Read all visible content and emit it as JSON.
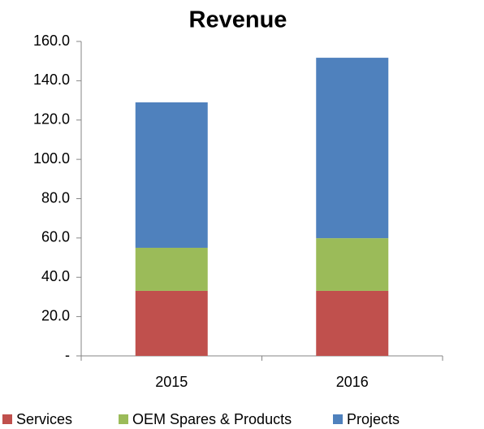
{
  "chart_data": {
    "type": "stacked_bar",
    "title": "Revenue",
    "categories": [
      "2015",
      "2016"
    ],
    "series": [
      {
        "name": "Services",
        "color": "#c0504d",
        "values": [
          33.1,
          33.1
        ]
      },
      {
        "name": "OEM Spares & Products",
        "color": "#9bbb59",
        "values": [
          21.9,
          26.8
        ]
      },
      {
        "name": "Projects",
        "color": "#4f81bd",
        "values": [
          74,
          91.8
        ]
      }
    ],
    "ylim": [
      0,
      160
    ],
    "yticks": [
      {
        "value": 0,
        "label": "-"
      },
      {
        "value": 20,
        "label": "20.0"
      },
      {
        "value": 40,
        "label": "40.0"
      },
      {
        "value": 60,
        "label": "60.0"
      },
      {
        "value": 80,
        "label": "80.0"
      },
      {
        "value": 100,
        "label": "100.0"
      },
      {
        "value": 120,
        "label": "120.0"
      },
      {
        "value": 140,
        "label": "140.0"
      },
      {
        "value": 160,
        "label": "160.0"
      }
    ],
    "grid": false,
    "legend": "bottom"
  }
}
